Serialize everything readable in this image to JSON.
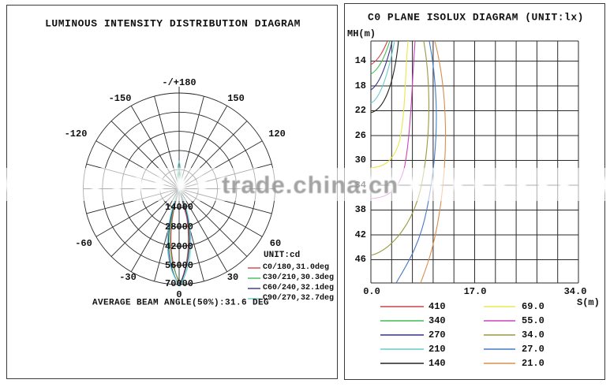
{
  "watermark": {
    "text": "trade.china.cn"
  },
  "left_panel": {
    "title": "LUMINOUS INTENSITY DISTRIBUTION DIAGRAM",
    "polar": {
      "angle_labels": [
        {
          "text": "-/+180"
        },
        {
          "text": "-150"
        },
        {
          "text": "150"
        },
        {
          "text": "-120"
        },
        {
          "text": "120"
        },
        {
          "text": "-60"
        },
        {
          "text": "60"
        },
        {
          "text": "-30"
        },
        {
          "text": "30"
        },
        {
          "text": "0"
        }
      ],
      "radial_labels": [
        {
          "text": "14000"
        },
        {
          "text": "28000"
        },
        {
          "text": "42000"
        },
        {
          "text": "56000"
        },
        {
          "text": "70000"
        }
      ]
    },
    "legend": {
      "unit_label": "UNIT:cd",
      "entries": [
        {
          "label": "C0/180,31.0deg",
          "color": "#cc4444"
        },
        {
          "label": "C30/210,30.3deg",
          "color": "#44bb55"
        },
        {
          "label": "C60/240,32.1deg",
          "color": "#333388"
        },
        {
          "label": "C90/270,32.7deg",
          "color": "#66cccc"
        }
      ]
    },
    "footer": "AVERAGE BEAM ANGLE(50%):31.6 DEG"
  },
  "right_panel": {
    "title": "C0 PLANE ISOLUX DIAGRAM (UNIT:lx)",
    "y_axis_label": "MH(m)",
    "x_axis_label": "S(m)",
    "y_ticks": [
      {
        "text": "14"
      },
      {
        "text": "18"
      },
      {
        "text": "22"
      },
      {
        "text": "26"
      },
      {
        "text": "30"
      },
      {
        "text": "34"
      },
      {
        "text": "38"
      },
      {
        "text": "42"
      },
      {
        "text": "46"
      }
    ],
    "x_ticks": [
      {
        "text": "0.0"
      },
      {
        "text": "17.0"
      },
      {
        "text": "34.0"
      }
    ],
    "legend": {
      "col1": [
        {
          "value": "410",
          "color": "#cc4444"
        },
        {
          "value": "340",
          "color": "#44bb55"
        },
        {
          "value": "270",
          "color": "#333388"
        },
        {
          "value": "210",
          "color": "#66cccc"
        },
        {
          "value": "140",
          "color": "#222222"
        }
      ],
      "col2": [
        {
          "value": "69.0",
          "color": "#e8e84e"
        },
        {
          "value": "55.0",
          "color": "#cc44bb"
        },
        {
          "value": "34.0",
          "color": "#999940"
        },
        {
          "value": "27.0",
          "color": "#4679c8"
        },
        {
          "value": "21.0",
          "color": "#d98d4a"
        }
      ]
    }
  },
  "chart_data": [
    {
      "type": "line",
      "variant": "polar-luminous-intensity",
      "title": "LUMINOUS INTENSITY DISTRIBUTION DIAGRAM",
      "unit": "cd",
      "angle_tick_labels": [
        "-/+180",
        "-150",
        "150",
        "-120",
        "120",
        "-60",
        "60",
        "-30",
        "30",
        "0"
      ],
      "angle_grid_step_deg": 15,
      "radial_ticks_cd": [
        14000,
        28000,
        42000,
        56000,
        70000
      ],
      "max_intensity_cd": 70000,
      "peak_direction_deg": 0,
      "series": [
        {
          "name": "C0/180",
          "beam_angle_deg": 31.0,
          "peak_cd": 70000
        },
        {
          "name": "C30/210",
          "beam_angle_deg": 30.3,
          "peak_cd": 70000
        },
        {
          "name": "C60/240",
          "beam_angle_deg": 32.1,
          "peak_cd": 70000
        },
        {
          "name": "C90/270",
          "beam_angle_deg": 32.7,
          "peak_cd": 70000
        }
      ],
      "average_beam_angle_50pct_deg": 31.6
    },
    {
      "type": "line",
      "variant": "isolux",
      "title": "C0 PLANE ISOLUX DIAGRAM (UNIT:lx)",
      "xlabel": "S(m)",
      "ylabel": "MH(m)",
      "xlim": [
        0,
        34
      ],
      "x_ticks": [
        0.0,
        17.0,
        34.0
      ],
      "y_ticks": [
        14,
        18,
        22,
        26,
        30,
        34,
        38,
        42,
        46
      ],
      "y_axis_direction": "increasing-downward",
      "grid": true,
      "legend_position": "below",
      "series": [
        {
          "level_lx": 410,
          "points_S_MH": [
            [
              0,
              14.6
            ],
            [
              1.3,
              13.2
            ],
            [
              2.7,
              10.8
            ]
          ]
        },
        {
          "level_lx": 340,
          "points_S_MH": [
            [
              0,
              16.2
            ],
            [
              1.6,
              14.0
            ],
            [
              3.1,
              10.8
            ]
          ]
        },
        {
          "level_lx": 270,
          "points_S_MH": [
            [
              0,
              18.7
            ],
            [
              2.0,
              15.0
            ],
            [
              3.5,
              10.8
            ]
          ]
        },
        {
          "level_lx": 210,
          "points_S_MH": [
            [
              0,
              20.9
            ],
            [
              2.5,
              15.5
            ],
            [
              3.9,
              10.8
            ]
          ]
        },
        {
          "level_lx": 140,
          "points_S_MH": [
            [
              0,
              22.4
            ],
            [
              3.1,
              18.0
            ],
            [
              4.5,
              10.8
            ]
          ]
        },
        {
          "level_lx": 69.0,
          "points_S_MH": [
            [
              6.1,
              10.8
            ],
            [
              4.7,
              27.0
            ],
            [
              0,
              31.3
            ]
          ]
        },
        {
          "level_lx": 55.0,
          "points_S_MH": [
            [
              7.2,
              10.8
            ],
            [
              5.6,
              30.9
            ],
            [
              0,
              36.2
            ]
          ]
        },
        {
          "level_lx": 34.0,
          "points_S_MH": [
            [
              8.7,
              10.8
            ],
            [
              9.8,
              19.5
            ],
            [
              8.4,
              33.4
            ],
            [
              0,
              45.4
            ]
          ]
        },
        {
          "level_lx": 27.0,
          "points_S_MH": [
            [
              9.6,
              10.8
            ],
            [
              11.2,
              22.0
            ],
            [
              9.2,
              38.0
            ],
            [
              4.1,
              49.8
            ]
          ]
        },
        {
          "level_lx": 21.0,
          "points_S_MH": [
            [
              10.5,
              10.8
            ],
            [
              12.8,
              24.0
            ],
            [
              11.1,
              39.0
            ],
            [
              8.1,
              49.8
            ]
          ]
        }
      ]
    }
  ]
}
